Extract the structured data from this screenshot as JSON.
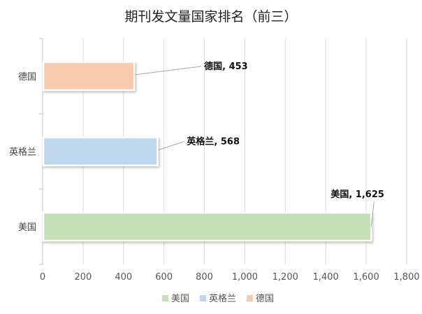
{
  "chart_data": {
    "type": "bar",
    "orientation": "horizontal",
    "title": "期刊发文量国家排名（前三）",
    "categories": [
      "德国",
      "英格兰",
      "美国"
    ],
    "series": [
      {
        "name": "美国",
        "category": "美国",
        "value": 1625,
        "color": "#c5e0b4",
        "data_label": "美国, 1,625"
      },
      {
        "name": "英格兰",
        "category": "英格兰",
        "value": 568,
        "color": "#bdd7ee",
        "data_label": "英格兰, 568"
      },
      {
        "name": "德国",
        "category": "德国",
        "value": 453,
        "color": "#f8cbad",
        "data_label": "德国, 453"
      }
    ],
    "xlim": [
      0,
      1800
    ],
    "xticks": [
      0,
      200,
      400,
      600,
      800,
      1000,
      1200,
      1400,
      1600,
      1800
    ],
    "xtick_labels": [
      "0",
      "200",
      "400",
      "600",
      "800",
      "1,000",
      "1,200",
      "1,400",
      "1,600",
      "1,800"
    ],
    "grid": true,
    "legend_position": "bottom",
    "legend_order": [
      "美国",
      "英格兰",
      "德国"
    ],
    "xlabel": "",
    "ylabel": ""
  }
}
